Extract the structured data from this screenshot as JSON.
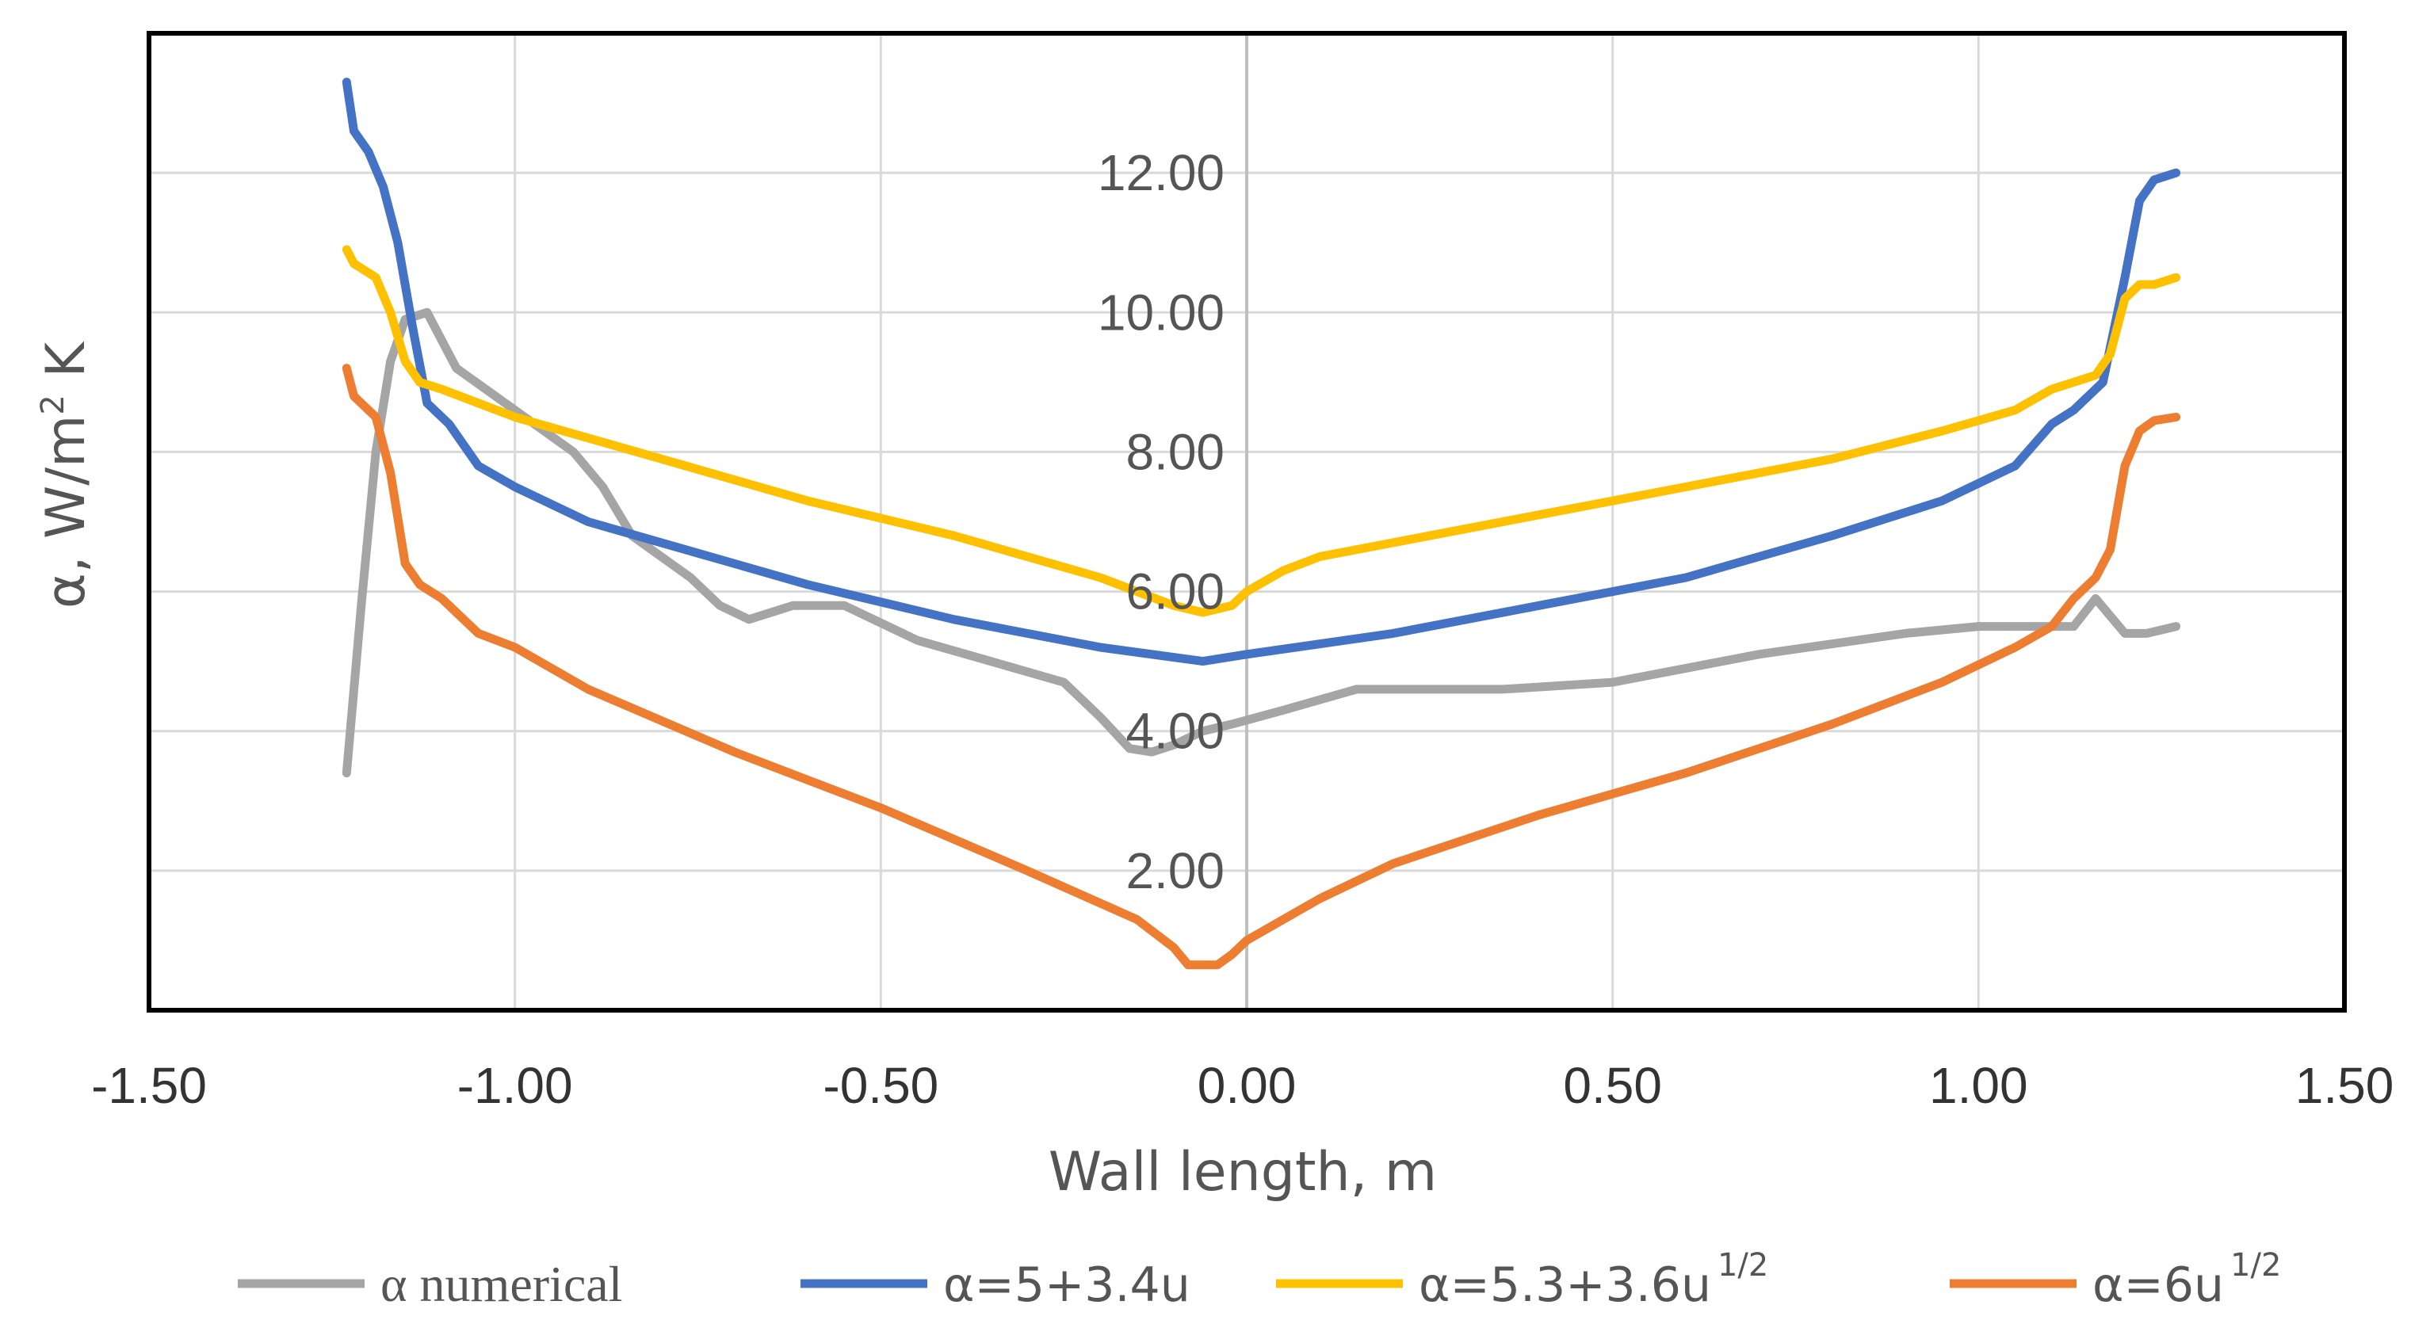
{
  "chart_data": {
    "type": "line",
    "title": "",
    "xlabel": "Wall length, m",
    "ylabel": "α, W/m² K",
    "ylabel_parts": {
      "base": "α, W/m",
      "sup": "2",
      "tail": " K"
    },
    "xlim": [
      -1.5,
      1.5
    ],
    "ylim": [
      0,
      14
    ],
    "xticks": [
      -1.5,
      -1.0,
      -0.5,
      0.0,
      0.5,
      1.0,
      1.5
    ],
    "xtick_labels": [
      "-1.50",
      "-1.00",
      "-0.50",
      "0.00",
      "0.50",
      "1.00",
      "1.50"
    ],
    "yticks": [
      2,
      4,
      6,
      8,
      10,
      12
    ],
    "ytick_labels": [
      "2.00",
      "4.00",
      "6.00",
      "8.00",
      "10.00",
      "12.00"
    ],
    "grid": true,
    "legend_position": "bottom",
    "series": [
      {
        "name": "α  numerical",
        "legend_base": "α  numerical",
        "legend_sup": "",
        "color": "#a5a5a5",
        "x": [
          -1.23,
          -1.21,
          -1.19,
          -1.17,
          -1.15,
          -1.12,
          -1.08,
          -1.0,
          -0.92,
          -0.88,
          -0.84,
          -0.76,
          -0.72,
          -0.68,
          -0.62,
          -0.55,
          -0.45,
          -0.35,
          -0.25,
          -0.2,
          -0.16,
          -0.13,
          -0.1,
          -0.06,
          -0.02,
          0.05,
          0.15,
          0.25,
          0.35,
          0.5,
          0.7,
          0.9,
          1.0,
          1.05,
          1.1,
          1.13,
          1.16,
          1.2,
          1.23,
          1.27
        ],
        "y": [
          3.4,
          5.8,
          8.0,
          9.3,
          9.9,
          10.0,
          9.2,
          8.6,
          8.0,
          7.5,
          6.8,
          6.2,
          5.8,
          5.6,
          5.8,
          5.8,
          5.3,
          5.0,
          4.7,
          4.2,
          3.75,
          3.7,
          3.8,
          4.0,
          4.1,
          4.3,
          4.6,
          4.6,
          4.6,
          4.7,
          5.1,
          5.4,
          5.5,
          5.5,
          5.5,
          5.5,
          5.9,
          5.4,
          5.4,
          5.5
        ]
      },
      {
        "name": "α=5+3.4u",
        "legend_base": "α=5+3.4u",
        "legend_sup": "",
        "color": "#4472c4",
        "x": [
          -1.23,
          -1.22,
          -1.2,
          -1.18,
          -1.16,
          -1.14,
          -1.12,
          -1.09,
          -1.05,
          -1.0,
          -0.9,
          -0.8,
          -0.6,
          -0.4,
          -0.2,
          -0.06,
          0.0,
          0.2,
          0.4,
          0.6,
          0.8,
          0.95,
          1.05,
          1.1,
          1.13,
          1.17,
          1.2,
          1.22,
          1.24,
          1.27
        ],
        "y": [
          13.3,
          12.6,
          12.3,
          11.8,
          11.0,
          9.8,
          8.7,
          8.4,
          7.8,
          7.5,
          7.0,
          6.7,
          6.1,
          5.6,
          5.2,
          5.0,
          5.1,
          5.4,
          5.8,
          6.2,
          6.8,
          7.3,
          7.8,
          8.4,
          8.6,
          9.0,
          10.5,
          11.6,
          11.9,
          12.0
        ]
      },
      {
        "name": "α=5.3+3.6u1/2",
        "legend_base": "α=5.3+3.6u",
        "legend_sup": "1/2",
        "color": "#ffc000",
        "x": [
          -1.23,
          -1.22,
          -1.19,
          -1.17,
          -1.15,
          -1.13,
          -1.1,
          -1.05,
          -1.0,
          -0.9,
          -0.8,
          -0.6,
          -0.4,
          -0.2,
          -0.1,
          -0.06,
          -0.02,
          0.0,
          0.05,
          0.1,
          0.2,
          0.4,
          0.6,
          0.8,
          0.95,
          1.05,
          1.1,
          1.13,
          1.16,
          1.18,
          1.2,
          1.22,
          1.24,
          1.27
        ],
        "y": [
          10.9,
          10.7,
          10.5,
          10.0,
          9.3,
          9.0,
          8.9,
          8.7,
          8.5,
          8.2,
          7.9,
          7.3,
          6.8,
          6.2,
          5.8,
          5.7,
          5.8,
          6.0,
          6.3,
          6.5,
          6.7,
          7.1,
          7.5,
          7.9,
          8.3,
          8.6,
          8.9,
          9.0,
          9.1,
          9.4,
          10.2,
          10.4,
          10.4,
          10.5
        ]
      },
      {
        "name": "α=6u1/2",
        "legend_base": "α=6u",
        "legend_sup": "1/2",
        "color": "#ed7d31",
        "x": [
          -1.23,
          -1.22,
          -1.19,
          -1.17,
          -1.15,
          -1.13,
          -1.1,
          -1.05,
          -1.0,
          -0.9,
          -0.7,
          -0.5,
          -0.3,
          -0.15,
          -0.1,
          -0.08,
          -0.04,
          -0.02,
          0.0,
          0.1,
          0.2,
          0.4,
          0.6,
          0.8,
          0.95,
          1.05,
          1.1,
          1.13,
          1.16,
          1.18,
          1.2,
          1.22,
          1.24,
          1.27
        ],
        "y": [
          9.2,
          8.8,
          8.5,
          7.7,
          6.4,
          6.1,
          5.9,
          5.4,
          5.2,
          4.6,
          3.7,
          2.9,
          2.0,
          1.3,
          0.9,
          0.65,
          0.65,
          0.8,
          1.0,
          1.6,
          2.1,
          2.8,
          3.4,
          4.1,
          4.7,
          5.2,
          5.5,
          5.9,
          6.2,
          6.6,
          7.8,
          8.3,
          8.45,
          8.5
        ]
      }
    ]
  }
}
